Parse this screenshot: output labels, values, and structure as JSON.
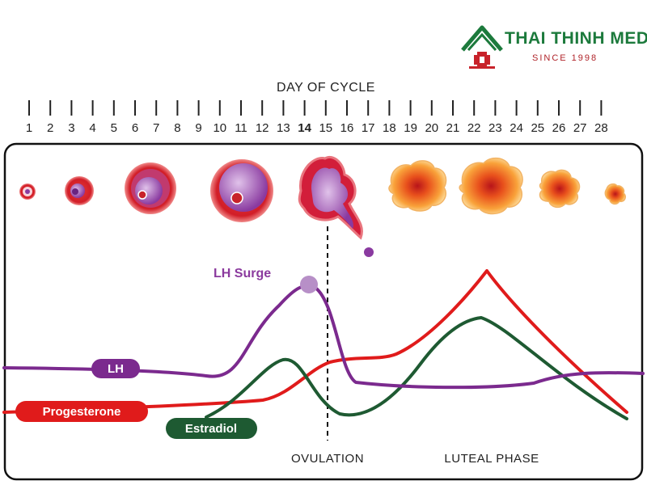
{
  "brand": {
    "name": "THAI THINH MEDIC",
    "since": "SINCE 1998",
    "colors": {
      "green": "#1c7a3c",
      "red": "#c8222a"
    }
  },
  "axis_title": "DAY OF CYCLE",
  "days": [
    "1",
    "2",
    "3",
    "4",
    "5",
    "6",
    "7",
    "8",
    "9",
    "10",
    "11",
    "12",
    "13",
    "14",
    "15",
    "16",
    "17",
    "18",
    "19",
    "20",
    "21",
    "22",
    "23",
    "24",
    "25",
    "26",
    "27",
    "28"
  ],
  "highlighted_day": "14",
  "labels": {
    "lh_surge": "LH Surge",
    "ovulation": "OVULATION",
    "luteal_phase": "LUTEAL PHASE"
  },
  "stages": [
    {
      "name": "primordial follicle",
      "day": 1
    },
    {
      "name": "primary follicle",
      "day": 3.5
    },
    {
      "name": "secondary follicle",
      "day": 6
    },
    {
      "name": "mature follicle",
      "day": 11
    },
    {
      "name": "ovulation rupture",
      "day": 15
    },
    {
      "name": "corpus luteum early",
      "day": 19
    },
    {
      "name": "corpus luteum",
      "day": 22.5
    },
    {
      "name": "regressing corpus luteum",
      "day": 25.5
    },
    {
      "name": "corpus albicans",
      "day": 28
    }
  ],
  "hormones": [
    {
      "name": "LH",
      "color": "#7b2a8e"
    },
    {
      "name": "Progesterone",
      "color": "#e01b1b"
    },
    {
      "name": "Estradiol",
      "color": "#1e5a32"
    }
  ],
  "colors": {
    "lh": "#7b2a8e",
    "progesterone": "#e01b1b",
    "estradiol": "#1e5a32",
    "lh_surge_marker": "#b78fc7"
  }
}
